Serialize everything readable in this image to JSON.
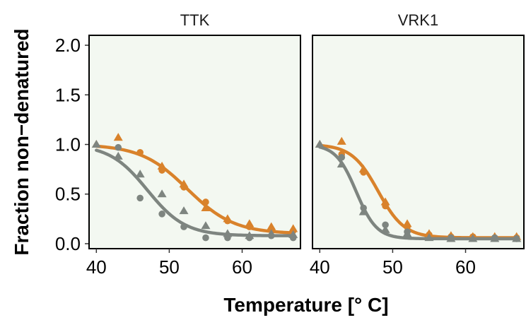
{
  "chart_data": {
    "type": "scatter",
    "xlabel": "Temperature [° C]",
    "ylabel": "Fraction non−denatured",
    "xlim": [
      39,
      68
    ],
    "ylim": [
      -0.05,
      2.1
    ],
    "x_ticks": [
      40,
      50,
      60
    ],
    "y_ticks": [
      0.0,
      0.5,
      1.0,
      1.5,
      2.0
    ],
    "y_tick_labels": [
      "0.0",
      "0.5",
      "1.0",
      "1.5",
      "2.0"
    ],
    "grid": false,
    "colors": {
      "orange": "#d9822b",
      "gray": "#7e8580",
      "panel_bg": "#f3f8f1"
    },
    "facets": [
      {
        "label": "TTK",
        "series": [
          {
            "color": "#d9822b",
            "curve": {
              "tm": 52.5,
              "slope": 3.2,
              "plateau": 0.1
            },
            "points": [
              {
                "x": 40,
                "y": 1.0,
                "shape": "triangle"
              },
              {
                "x": 43,
                "y": 1.07,
                "shape": "triangle"
              },
              {
                "x": 46,
                "y": 0.92,
                "shape": "circle"
              },
              {
                "x": 49,
                "y": 0.78,
                "shape": "triangle"
              },
              {
                "x": 49,
                "y": 0.74,
                "shape": "circle"
              },
              {
                "x": 52,
                "y": 0.6,
                "shape": "triangle"
              },
              {
                "x": 52,
                "y": 0.57,
                "shape": "circle"
              },
              {
                "x": 55,
                "y": 0.42,
                "shape": "circle"
              },
              {
                "x": 55,
                "y": 0.36,
                "shape": "triangle"
              },
              {
                "x": 58,
                "y": 0.25,
                "shape": "triangle"
              },
              {
                "x": 58,
                "y": 0.23,
                "shape": "circle"
              },
              {
                "x": 61,
                "y": 0.2,
                "shape": "triangle"
              },
              {
                "x": 61,
                "y": 0.17,
                "shape": "circle"
              },
              {
                "x": 64,
                "y": 0.17,
                "shape": "triangle"
              },
              {
                "x": 64,
                "y": 0.14,
                "shape": "circle"
              },
              {
                "x": 67,
                "y": 0.15,
                "shape": "triangle"
              },
              {
                "x": 67,
                "y": 0.13,
                "shape": "circle"
              }
            ]
          },
          {
            "color": "#7e8580",
            "curve": {
              "tm": 47.0,
              "slope": 2.6,
              "plateau": 0.08
            },
            "points": [
              {
                "x": 40,
                "y": 1.0,
                "shape": "triangle"
              },
              {
                "x": 43,
                "y": 0.97,
                "shape": "circle"
              },
              {
                "x": 43,
                "y": 0.88,
                "shape": "triangle"
              },
              {
                "x": 46,
                "y": 0.7,
                "shape": "triangle"
              },
              {
                "x": 46,
                "y": 0.46,
                "shape": "circle"
              },
              {
                "x": 49,
                "y": 0.5,
                "shape": "triangle"
              },
              {
                "x": 49,
                "y": 0.3,
                "shape": "circle"
              },
              {
                "x": 52,
                "y": 0.33,
                "shape": "triangle"
              },
              {
                "x": 52,
                "y": 0.17,
                "shape": "circle"
              },
              {
                "x": 55,
                "y": 0.18,
                "shape": "triangle"
              },
              {
                "x": 55,
                "y": 0.06,
                "shape": "circle"
              },
              {
                "x": 58,
                "y": 0.1,
                "shape": "triangle"
              },
              {
                "x": 58,
                "y": 0.06,
                "shape": "circle"
              },
              {
                "x": 61,
                "y": 0.08,
                "shape": "triangle"
              },
              {
                "x": 61,
                "y": 0.06,
                "shape": "circle"
              },
              {
                "x": 64,
                "y": 0.1,
                "shape": "triangle"
              },
              {
                "x": 64,
                "y": 0.08,
                "shape": "circle"
              },
              {
                "x": 67,
                "y": 0.09,
                "shape": "triangle"
              },
              {
                "x": 67,
                "y": 0.06,
                "shape": "circle"
              }
            ]
          }
        ]
      },
      {
        "label": "VRK1",
        "series": [
          {
            "color": "#d9822b",
            "curve": {
              "tm": 48.0,
              "slope": 1.8,
              "plateau": 0.06
            },
            "points": [
              {
                "x": 40,
                "y": 1.0,
                "shape": "triangle"
              },
              {
                "x": 43,
                "y": 1.03,
                "shape": "triangle"
              },
              {
                "x": 43,
                "y": 0.9,
                "shape": "circle"
              },
              {
                "x": 46,
                "y": 0.75,
                "shape": "triangle"
              },
              {
                "x": 46,
                "y": 0.72,
                "shape": "circle"
              },
              {
                "x": 49,
                "y": 0.42,
                "shape": "triangle"
              },
              {
                "x": 49,
                "y": 0.38,
                "shape": "circle"
              },
              {
                "x": 52,
                "y": 0.2,
                "shape": "triangle"
              },
              {
                "x": 52,
                "y": 0.17,
                "shape": "circle"
              },
              {
                "x": 55,
                "y": 0.1,
                "shape": "triangle"
              },
              {
                "x": 55,
                "y": 0.09,
                "shape": "circle"
              },
              {
                "x": 58,
                "y": 0.08,
                "shape": "triangle"
              },
              {
                "x": 58,
                "y": 0.07,
                "shape": "circle"
              },
              {
                "x": 61,
                "y": 0.07,
                "shape": "triangle"
              },
              {
                "x": 61,
                "y": 0.07,
                "shape": "circle"
              },
              {
                "x": 64,
                "y": 0.07,
                "shape": "triangle"
              },
              {
                "x": 64,
                "y": 0.06,
                "shape": "circle"
              },
              {
                "x": 67,
                "y": 0.07,
                "shape": "triangle"
              },
              {
                "x": 67,
                "y": 0.06,
                "shape": "circle"
              }
            ]
          },
          {
            "color": "#7e8580",
            "curve": {
              "tm": 45.0,
              "slope": 1.4,
              "plateau": 0.05
            },
            "points": [
              {
                "x": 40,
                "y": 1.0,
                "shape": "triangle"
              },
              {
                "x": 43,
                "y": 0.87,
                "shape": "circle"
              },
              {
                "x": 43,
                "y": 0.8,
                "shape": "triangle"
              },
              {
                "x": 46,
                "y": 0.36,
                "shape": "circle"
              },
              {
                "x": 46,
                "y": 0.32,
                "shape": "triangle"
              },
              {
                "x": 49,
                "y": 0.19,
                "shape": "circle"
              },
              {
                "x": 49,
                "y": 0.14,
                "shape": "triangle"
              },
              {
                "x": 52,
                "y": 0.12,
                "shape": "circle"
              },
              {
                "x": 52,
                "y": 0.1,
                "shape": "triangle"
              },
              {
                "x": 55,
                "y": 0.06,
                "shape": "triangle"
              },
              {
                "x": 58,
                "y": 0.06,
                "shape": "circle"
              },
              {
                "x": 58,
                "y": 0.05,
                "shape": "triangle"
              },
              {
                "x": 61,
                "y": 0.05,
                "shape": "triangle"
              },
              {
                "x": 64,
                "y": 0.06,
                "shape": "circle"
              },
              {
                "x": 64,
                "y": 0.05,
                "shape": "triangle"
              },
              {
                "x": 67,
                "y": 0.05,
                "shape": "triangle"
              },
              {
                "x": 67,
                "y": 0.05,
                "shape": "circle"
              }
            ]
          }
        ]
      }
    ]
  }
}
